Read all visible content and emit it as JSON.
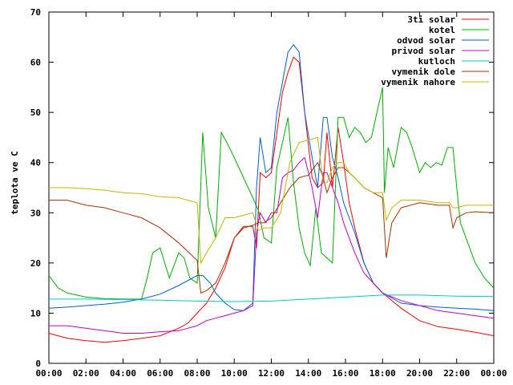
{
  "chart_data": {
    "type": "line",
    "title": "",
    "xlabel": "",
    "ylabel": "teplota ve C",
    "xlim": [
      0,
      24
    ],
    "ylim": [
      0,
      70
    ],
    "x_ticks": [
      0,
      2,
      4,
      6,
      8,
      10,
      12,
      14,
      16,
      18,
      20,
      22,
      24
    ],
    "x_tick_labels": [
      "00:00",
      "02:00",
      "04:00",
      "06:00",
      "08:00",
      "10:00",
      "12:00",
      "14:00",
      "16:00",
      "18:00",
      "20:00",
      "22:00",
      "00:00"
    ],
    "y_ticks": [
      0,
      10,
      20,
      30,
      40,
      50,
      60,
      70
    ],
    "grid": false,
    "legend_position": "top-right",
    "series": [
      {
        "name": "3ti solar",
        "color": "#ff0000",
        "x": [
          0,
          1,
          2,
          3,
          4,
          5,
          6,
          7,
          7.5,
          8,
          8.5,
          9,
          9.5,
          10,
          10.5,
          11,
          11.2,
          11.4,
          11.7,
          12,
          12.3,
          12.6,
          12.9,
          13.2,
          13.5,
          13.8,
          14.2,
          14.5,
          14.8,
          15,
          15.3,
          15.6,
          15.9,
          16.2,
          16.5,
          17,
          17.5,
          18,
          19,
          20,
          21,
          22,
          23,
          24
        ],
        "y": [
          6,
          5,
          4.5,
          4.2,
          4.5,
          5,
          5.5,
          7,
          8,
          10,
          12,
          15,
          19,
          25,
          27.3,
          27.3,
          23,
          38,
          37,
          38,
          46,
          54,
          58,
          61,
          60,
          50,
          37,
          35,
          36,
          46,
          35,
          47,
          40,
          32,
          27,
          20,
          16,
          14,
          11,
          8.5,
          7.3,
          6.8,
          6.2,
          5.5
        ]
      },
      {
        "name": "kotel",
        "color": "#00b000",
        "x": [
          0,
          0.5,
          1,
          2,
          3,
          4,
          5,
          5.3,
          5.6,
          6,
          6.5,
          7,
          7.3,
          7.6,
          8,
          8.3,
          8.6,
          9,
          9.3,
          9.6,
          10,
          10.5,
          11,
          11.3,
          11.6,
          12,
          12.3,
          12.6,
          12.9,
          13.2,
          13.5,
          13.8,
          14.1,
          14.4,
          14.7,
          15,
          15.3,
          15.6,
          15.9,
          16.2,
          16.5,
          16.8,
          17.1,
          17.4,
          17.7,
          18,
          18.1,
          18.3,
          18.6,
          19,
          19.3,
          19.6,
          20,
          20.3,
          20.6,
          20.9,
          21.2,
          21.5,
          21.8,
          22,
          22.2,
          22.5,
          23,
          23.5,
          24
        ],
        "y": [
          17.5,
          15,
          14,
          13.2,
          12.9,
          12.8,
          12.8,
          17,
          22,
          23,
          17,
          22,
          21,
          17,
          16,
          46,
          31,
          25,
          46,
          44,
          41,
          37,
          33,
          30.5,
          25,
          24,
          39,
          44,
          49,
          36,
          27,
          22,
          19.5,
          31,
          22,
          21,
          20,
          49,
          49,
          45,
          47,
          46,
          44,
          45,
          50,
          55,
          34,
          43,
          39,
          47,
          46,
          43,
          38,
          40,
          39,
          40,
          39.5,
          43,
          43,
          35,
          28,
          25,
          20,
          17,
          15
        ]
      },
      {
        "name": "odvod solar",
        "color": "#0060d0",
        "x": [
          0,
          1,
          2,
          3,
          4,
          5,
          6,
          7,
          8,
          8.3,
          8.7,
          9,
          9.5,
          10,
          10.5,
          11,
          11.2,
          11.4,
          11.7,
          12,
          12.3,
          12.6,
          12.9,
          13.2,
          13.5,
          13.8,
          14.2,
          14.5,
          14.8,
          15,
          15.3,
          15.6,
          15.9,
          16.2,
          16.5,
          17,
          17.5,
          18,
          19,
          20,
          21,
          22,
          23,
          24
        ],
        "y": [
          11,
          11.2,
          11.5,
          11.8,
          12.2,
          12.8,
          13.8,
          15.5,
          17.5,
          17.5,
          16,
          14,
          12,
          10.7,
          10.5,
          12,
          35,
          45,
          38,
          39,
          50,
          56,
          62,
          63.5,
          62,
          50,
          41,
          35,
          49,
          49,
          41,
          37,
          32,
          29,
          26,
          20,
          16,
          14,
          12,
          11.5,
          11.2,
          11,
          10.8,
          10.5
        ]
      },
      {
        "name": "privod solar",
        "color": "#c000d0",
        "x": [
          0,
          1,
          2,
          3,
          4,
          5,
          6,
          7,
          7.5,
          8,
          8.5,
          9,
          9.5,
          10,
          10.5,
          11,
          11.2,
          11.4,
          11.7,
          12,
          12.3,
          12.6,
          12.9,
          13.2,
          13.5,
          13.8,
          14.2,
          14.5,
          14.8,
          15,
          15.3,
          15.6,
          15.9,
          16.2,
          16.5,
          17,
          17.5,
          18,
          19,
          20,
          21,
          22,
          23,
          24
        ],
        "y": [
          7.5,
          7.5,
          7,
          6.5,
          6,
          6,
          6.3,
          6.5,
          7,
          7.5,
          8.5,
          9,
          9.5,
          10,
          10.5,
          11.5,
          26,
          30,
          28,
          30,
          30,
          37,
          38,
          38.5,
          40,
          41,
          35,
          29,
          38,
          38,
          35,
          32,
          28,
          25,
          22,
          18,
          16,
          14,
          12.5,
          11.5,
          10.5,
          10,
          9.5,
          9
        ]
      },
      {
        "name": "kutloch",
        "color": "#00cccc",
        "x": [
          0,
          2,
          4,
          6,
          8,
          10,
          12,
          14,
          16,
          18,
          20,
          22,
          24
        ],
        "y": [
          12.8,
          12.8,
          12.7,
          12.6,
          12.4,
          12.3,
          12.4,
          12.8,
          13.2,
          13.6,
          13.6,
          13.4,
          13.3
        ]
      },
      {
        "name": "vymenik dole",
        "color": "#a83200",
        "x": [
          0,
          1,
          2,
          3,
          4,
          5,
          6,
          7,
          8,
          8.2,
          8.5,
          9,
          9.5,
          10,
          10.5,
          11,
          11.3,
          11.6,
          12,
          12.5,
          13,
          13.5,
          14,
          14.5,
          14.8,
          15,
          15.3,
          15.6,
          15.9,
          16.2,
          16.5,
          17,
          17.5,
          18,
          18.2,
          18.5,
          19,
          20,
          21,
          21.6,
          21.8,
          22,
          22.5,
          23,
          24
        ],
        "y": [
          32.5,
          32.5,
          31.5,
          31,
          30,
          29,
          27,
          24,
          20.5,
          14,
          14.5,
          16,
          20,
          25,
          27,
          27.5,
          28,
          28,
          29,
          32,
          35,
          37,
          37.5,
          40,
          37,
          34,
          37,
          39,
          39,
          38,
          37,
          35,
          34,
          33,
          21,
          28,
          31,
          32,
          31.5,
          31.5,
          27,
          29,
          30,
          30.2,
          30
        ]
      },
      {
        "name": "vymenik nahore",
        "color": "#c8b400",
        "x": [
          0,
          1,
          2,
          3,
          4,
          5,
          6,
          7,
          8,
          8.2,
          8.5,
          9,
          9.5,
          10,
          10.5,
          11,
          11.3,
          11.6,
          12,
          12.5,
          13,
          13.5,
          14,
          14.5,
          14.8,
          15,
          15.3,
          15.6,
          15.9,
          16.2,
          16.5,
          17,
          17.5,
          18,
          18.2,
          18.5,
          19,
          20,
          21,
          21.6,
          21.8,
          22,
          22.5,
          23,
          24
        ],
        "y": [
          35,
          35,
          34.8,
          34.5,
          34,
          33.8,
          33.2,
          33,
          32,
          20,
          22,
          25,
          29,
          29,
          29.5,
          30,
          26.5,
          27,
          27,
          30,
          40,
          44,
          44.5,
          45,
          36,
          36,
          39,
          40,
          40,
          38,
          37,
          35,
          34,
          34,
          28.5,
          31,
          32.5,
          32.5,
          32,
          32,
          31,
          31,
          31.5,
          31.5,
          31.5
        ]
      }
    ]
  }
}
